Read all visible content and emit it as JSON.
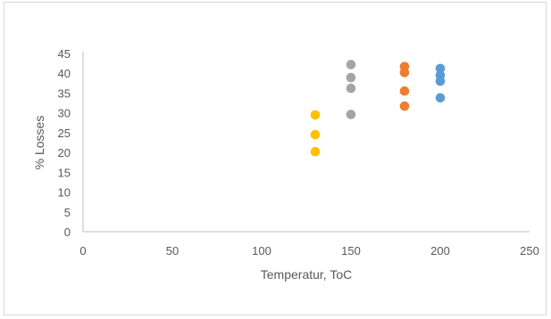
{
  "chart_data": {
    "type": "scatter",
    "title": "",
    "xlabel": "Temperatur, ToC",
    "ylabel": "% Losses",
    "xlim": [
      0,
      250
    ],
    "ylim": [
      0,
      45
    ],
    "xticks": [
      0,
      50,
      100,
      150,
      200,
      250
    ],
    "yticks": [
      0,
      5,
      10,
      15,
      20,
      25,
      30,
      35,
      40,
      45
    ],
    "grid": false,
    "legend": "none",
    "series": [
      {
        "color": "#FFC000",
        "points": [
          [
            130,
            29.5
          ],
          [
            130,
            24.5
          ],
          [
            130,
            20.2
          ]
        ]
      },
      {
        "color": "#A5A5A5",
        "points": [
          [
            150,
            42.2
          ],
          [
            150,
            38.9
          ],
          [
            150,
            36.2
          ],
          [
            150,
            29.6
          ]
        ]
      },
      {
        "color": "#ED7D31",
        "points": [
          [
            180,
            41.7
          ],
          [
            180,
            40.2
          ],
          [
            180,
            35.5
          ],
          [
            180,
            31.7
          ]
        ]
      },
      {
        "color": "#5B9BD5",
        "points": [
          [
            200,
            41.2
          ],
          [
            200,
            39.5
          ],
          [
            200,
            38.0
          ],
          [
            200,
            33.8
          ]
        ]
      }
    ]
  }
}
